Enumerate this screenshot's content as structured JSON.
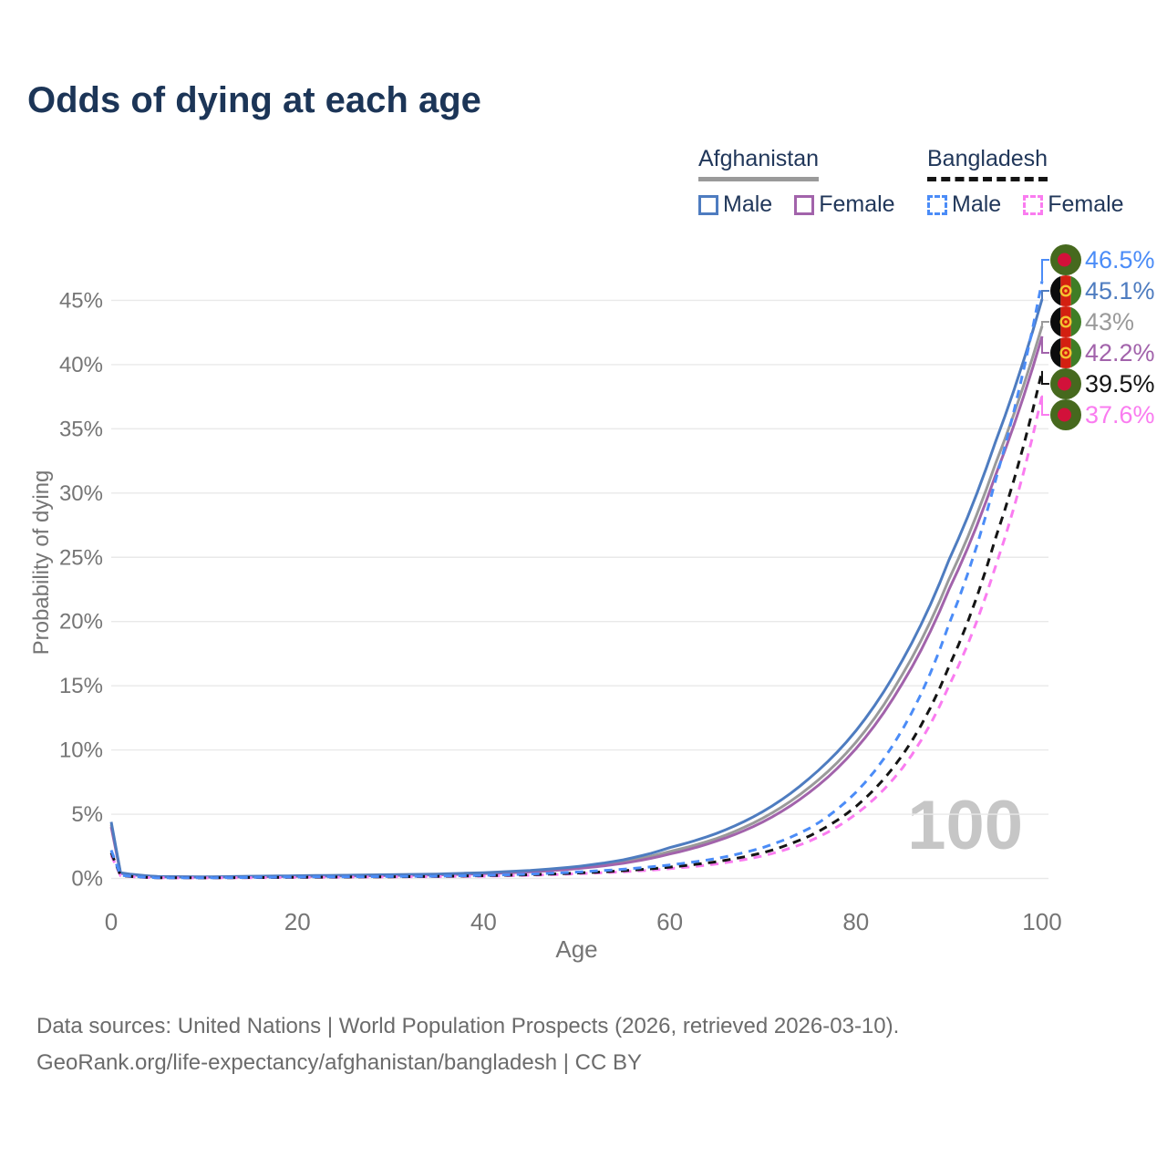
{
  "title": "Odds of dying at each age",
  "watermark": "100",
  "footer": {
    "line1": "Data sources: United Nations | World Population Prospects (2026, retrieved 2026-03-10).",
    "line2": "GeoRank.org/life-expectancy/afghanistan/bangladesh | CC BY"
  },
  "legend": {
    "groups": [
      {
        "name": "Afghanistan",
        "line_style": "solid",
        "underline_color": "#9a9a9a",
        "items": [
          {
            "label": "Male",
            "color": "#4e7cc0"
          },
          {
            "label": "Female",
            "color": "#a263ab"
          }
        ]
      },
      {
        "name": "Bangladesh",
        "line_style": "dashed",
        "underline_color": "#141414",
        "items": [
          {
            "label": "Male",
            "color": "#4b8cf7"
          },
          {
            "label": "Female",
            "color": "#fa7cf0"
          }
        ]
      }
    ]
  },
  "chart_data": {
    "type": "line",
    "title": "Odds of dying at each age",
    "xlabel": "Age",
    "ylabel": "Probability of dying",
    "xlim": [
      0,
      100
    ],
    "ylim": [
      0,
      48
    ],
    "x_ticks": [
      0,
      20,
      40,
      60,
      80,
      100
    ],
    "y_ticks": [
      0,
      5,
      10,
      15,
      20,
      25,
      30,
      35,
      40,
      45
    ],
    "y_tick_suffix": "%",
    "grid": "horizontal",
    "legend_position": "top-right",
    "x": [
      0,
      1,
      5,
      10,
      15,
      20,
      25,
      30,
      35,
      40,
      45,
      50,
      55,
      60,
      65,
      70,
      75,
      80,
      85,
      90,
      95,
      100
    ],
    "series": [
      {
        "name": "Afghanistan male",
        "key": "afg-male",
        "color": "#4e7cc0",
        "dashed": false,
        "flag": "afghanistan",
        "end_label": "45.1%",
        "end_value": 45.1,
        "values": [
          4.4,
          0.45,
          0.15,
          0.12,
          0.17,
          0.21,
          0.25,
          0.29,
          0.34,
          0.45,
          0.62,
          0.92,
          1.45,
          2.4,
          3.5,
          5.2,
          7.8,
          11.5,
          17.0,
          24.8,
          34.0,
          45.1
        ]
      },
      {
        "name": "Afghanistan both sexes",
        "key": "afg-total",
        "color": "#9a9a9a",
        "dashed": false,
        "flag": "afghanistan",
        "end_label": "43%",
        "end_value": 43.0,
        "values": [
          4.2,
          0.42,
          0.14,
          0.11,
          0.15,
          0.18,
          0.22,
          0.26,
          0.31,
          0.41,
          0.56,
          0.83,
          1.3,
          2.1,
          3.1,
          4.7,
          7.1,
          10.6,
          15.9,
          23.3,
          32.3,
          43.0
        ]
      },
      {
        "name": "Afghanistan female",
        "key": "afg-female",
        "color": "#a263ab",
        "dashed": false,
        "flag": "afghanistan",
        "end_label": "42.2%",
        "end_value": 42.2,
        "values": [
          4.0,
          0.4,
          0.13,
          0.1,
          0.13,
          0.16,
          0.19,
          0.23,
          0.28,
          0.37,
          0.51,
          0.76,
          1.18,
          1.9,
          2.9,
          4.4,
          6.7,
          10.1,
          15.2,
          22.5,
          31.4,
          42.2
        ]
      },
      {
        "name": "Bangladesh male",
        "key": "bgd-male",
        "color": "#4b8cf7",
        "dashed": true,
        "flag": "bangladesh",
        "end_label": "46.5%",
        "end_value": 46.5,
        "values": [
          2.2,
          0.25,
          0.06,
          0.05,
          0.08,
          0.11,
          0.13,
          0.15,
          0.18,
          0.24,
          0.34,
          0.5,
          0.72,
          1.05,
          1.55,
          2.4,
          3.9,
          6.7,
          11.6,
          19.8,
          31.0,
          46.5
        ]
      },
      {
        "name": "Bangladesh both sexes",
        "key": "bgd-total",
        "color": "#141414",
        "dashed": true,
        "flag": "bangladesh",
        "end_label": "39.5%",
        "end_value": 39.5,
        "values": [
          2.0,
          0.23,
          0.055,
          0.045,
          0.07,
          0.09,
          0.11,
          0.13,
          0.16,
          0.21,
          0.29,
          0.42,
          0.6,
          0.88,
          1.3,
          2.0,
          3.3,
          5.6,
          9.6,
          16.5,
          26.5,
          39.5
        ]
      },
      {
        "name": "Bangladesh female",
        "key": "bgd-female",
        "color": "#fa7cf0",
        "dashed": true,
        "flag": "bangladesh",
        "end_label": "37.6%",
        "end_value": 37.6,
        "values": [
          1.8,
          0.21,
          0.05,
          0.04,
          0.06,
          0.08,
          0.1,
          0.12,
          0.14,
          0.18,
          0.25,
          0.36,
          0.52,
          0.76,
          1.12,
          1.75,
          2.9,
          5.0,
          8.6,
          15.0,
          24.3,
          37.6
        ]
      }
    ],
    "flag_colors": {
      "bangladesh": {
        "field": "#46691e",
        "disc": "#d2113a"
      },
      "afghanistan": {
        "black": "#0c0c0c",
        "red": "#d32011",
        "green": "#3f7d26",
        "emblem": "#f5c330"
      }
    }
  }
}
